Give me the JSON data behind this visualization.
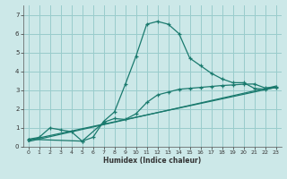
{
  "xlabel": "Humidex (Indice chaleur)",
  "background_color": "#cce8e8",
  "grid_color": "#99cccc",
  "line_color": "#1a7a6e",
  "xlim": [
    -0.5,
    23.5
  ],
  "ylim": [
    0,
    7.5
  ],
  "xticks": [
    0,
    1,
    2,
    3,
    4,
    5,
    6,
    7,
    8,
    9,
    10,
    11,
    12,
    13,
    14,
    15,
    16,
    17,
    18,
    19,
    20,
    21,
    22,
    23
  ],
  "yticks": [
    0,
    1,
    2,
    3,
    4,
    5,
    6,
    7
  ],
  "curve1_x": [
    0,
    1,
    2,
    3,
    4,
    5,
    6,
    7,
    8,
    9,
    10,
    11,
    12,
    13,
    14,
    15,
    16,
    17,
    18,
    19,
    20,
    21,
    22,
    23
  ],
  "curve1_y": [
    0.4,
    0.5,
    1.0,
    0.9,
    0.8,
    0.3,
    0.5,
    1.35,
    1.85,
    3.3,
    4.8,
    6.5,
    6.65,
    6.5,
    6.0,
    4.7,
    4.3,
    3.9,
    3.6,
    3.4,
    3.4,
    3.1,
    3.05,
    3.15
  ],
  "curve2_x": [
    0,
    5,
    7,
    8,
    9,
    10,
    11,
    12,
    13,
    14,
    15,
    16,
    17,
    18,
    19,
    20,
    21,
    22,
    23
  ],
  "curve2_y": [
    0.4,
    0.3,
    1.3,
    1.5,
    1.45,
    1.75,
    2.35,
    2.75,
    2.9,
    3.05,
    3.1,
    3.15,
    3.2,
    3.25,
    3.28,
    3.32,
    3.33,
    3.12,
    3.16
  ],
  "line1_x": [
    0,
    23
  ],
  "line1_y": [
    0.35,
    3.15
  ],
  "line2_x": [
    0,
    23
  ],
  "line2_y": [
    0.28,
    3.22
  ]
}
